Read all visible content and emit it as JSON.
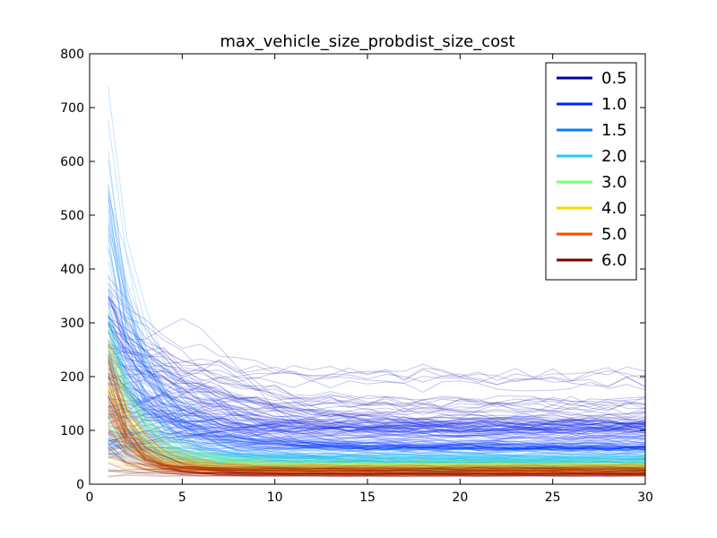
{
  "chart_data": {
    "type": "line",
    "title": "max_vehicle_size_probdist_size_cost",
    "xlabel": "",
    "ylabel": "",
    "xlim": [
      0,
      30
    ],
    "ylim": [
      0,
      800
    ],
    "x_ticks": [
      0,
      5,
      10,
      15,
      20,
      25,
      30
    ],
    "y_ticks": [
      0,
      100,
      200,
      300,
      400,
      500,
      600,
      700,
      800
    ],
    "grid": false,
    "legend_position": "top-right",
    "line_alpha": 0.22,
    "series": [
      {
        "name": "0.5",
        "color": "#0000a8",
        "lines": 40,
        "initial_range": [
          60,
          420
        ],
        "peak_range": [
          0,
          120
        ],
        "final_range": [
          100,
          215
        ],
        "decay": 0.22
      },
      {
        "name": "1.0",
        "color": "#0022ff",
        "lines": 80,
        "initial_range": [
          40,
          350
        ],
        "peak_range": [
          0,
          80
        ],
        "final_range": [
          65,
          120
        ],
        "decay": 0.32
      },
      {
        "name": "1.5",
        "color": "#0080ff",
        "lines": 45,
        "initial_range": [
          40,
          710
        ],
        "peak_range": [
          0,
          0
        ],
        "final_range": [
          40,
          80
        ],
        "decay": 0.55
      },
      {
        "name": "2.0",
        "color": "#15d4f0",
        "lines": 40,
        "initial_range": [
          40,
          340
        ],
        "peak_range": [
          0,
          0
        ],
        "final_range": [
          30,
          55
        ],
        "decay": 0.6
      },
      {
        "name": "3.0",
        "color": "#7dff7a",
        "lines": 40,
        "initial_range": [
          20,
          320
        ],
        "peak_range": [
          0,
          0
        ],
        "final_range": [
          25,
          45
        ],
        "decay": 0.65
      },
      {
        "name": "4.0",
        "color": "#ffd400",
        "lines": 35,
        "initial_range": [
          20,
          280
        ],
        "peak_range": [
          0,
          0
        ],
        "final_range": [
          20,
          38
        ],
        "decay": 0.7
      },
      {
        "name": "5.0",
        "color": "#ff4a00",
        "lines": 35,
        "initial_range": [
          15,
          260
        ],
        "peak_range": [
          0,
          0
        ],
        "final_range": [
          18,
          35
        ],
        "decay": 0.72
      },
      {
        "name": "6.0",
        "color": "#800000",
        "lines": 35,
        "initial_range": [
          12,
          250
        ],
        "peak_range": [
          0,
          0
        ],
        "final_range": [
          15,
          32
        ],
        "decay": 0.75
      }
    ],
    "x_start": 1,
    "x_end": 30
  }
}
